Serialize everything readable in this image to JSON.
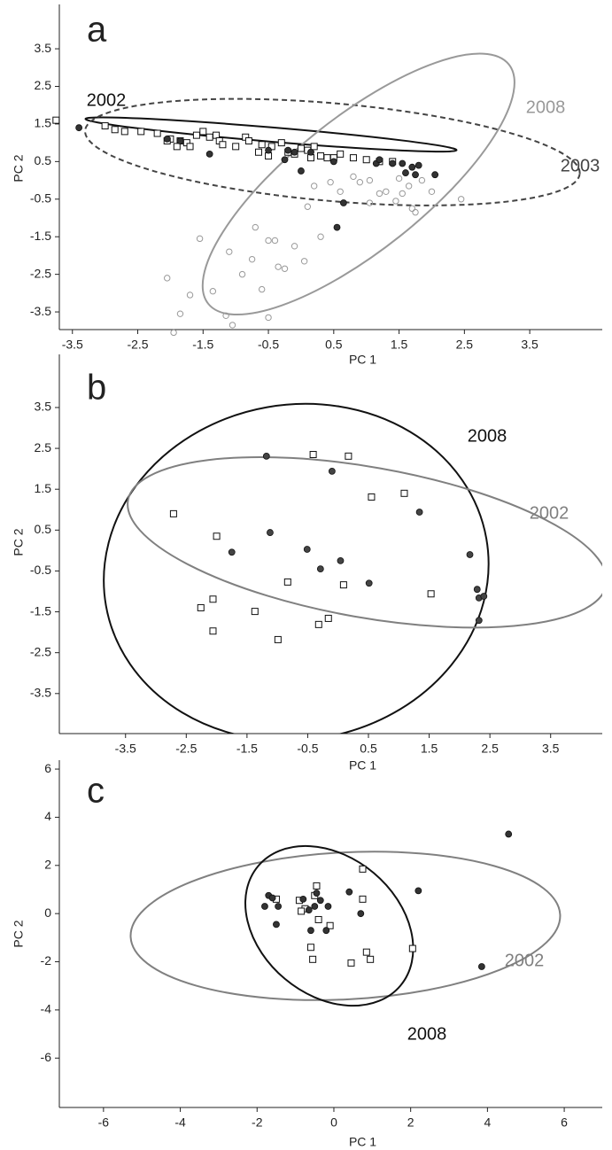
{
  "chart_data": [
    {
      "type": "scatter",
      "panel": "a",
      "x_label": "PC 1",
      "y_label": "PC 2",
      "xlim": [
        -3.7,
        4.61
      ],
      "ylim": [
        -3.97,
        4.68
      ],
      "xticks": [
        -3.5,
        -2.5,
        -1.5,
        -0.5,
        0.5,
        1.5,
        2.5,
        3.5
      ],
      "yticks": [
        -3.5,
        -2.5,
        -1.5,
        -0.5,
        0.5,
        1.5,
        2.5,
        3.5
      ],
      "series": [
        {
          "marker": "square",
          "color": "#111111",
          "x": [
            -3.75,
            -3.0,
            -2.85,
            -2.7,
            -2.45,
            -2.2,
            -2.0,
            -1.85,
            -1.75,
            -1.6,
            -1.5,
            -1.4,
            -1.3,
            -1.25,
            -1.0,
            -0.85,
            -0.8,
            -0.6,
            -0.5,
            -0.45,
            -0.3,
            -0.2,
            -0.1,
            0.0,
            0.1,
            0.2,
            0.3,
            0.4,
            0.5,
            0.6,
            0.8,
            -1.9,
            -1.7,
            -0.65,
            0.15,
            1.0,
            1.2,
            1.4,
            -2.05,
            -1.2
          ],
          "values": [
            1.6,
            1.45,
            1.35,
            1.3,
            1.3,
            1.25,
            1.1,
            1.05,
            1.0,
            1.2,
            1.3,
            1.15,
            1.2,
            1.05,
            0.9,
            1.15,
            1.05,
            0.95,
            0.65,
            0.9,
            1.0,
            0.75,
            0.7,
            0.85,
            0.8,
            0.9,
            0.65,
            0.6,
            0.6,
            0.7,
            0.6,
            0.9,
            0.9,
            0.75,
            0.6,
            0.55,
            0.5,
            0.5,
            1.05,
            0.95
          ]
        },
        {
          "marker": "filled-circle",
          "color": "#333333",
          "x": [
            -3.4,
            -2.05,
            -1.85,
            -1.4,
            -0.5,
            -0.2,
            -0.1,
            0.15,
            0.5,
            1.15,
            1.2,
            1.4,
            1.55,
            1.7,
            1.6,
            1.8,
            2.05,
            1.75,
            0.0,
            0.65,
            0.55,
            -0.25
          ],
          "values": [
            1.4,
            1.1,
            1.05,
            0.7,
            0.8,
            0.8,
            0.75,
            0.75,
            0.5,
            0.45,
            0.55,
            0.45,
            0.45,
            0.35,
            0.2,
            0.4,
            0.15,
            0.15,
            0.25,
            -0.6,
            -1.25,
            0.55
          ]
        },
        {
          "marker": "open-circle",
          "color": "#999999",
          "x": [
            -2.05,
            -1.95,
            -1.85,
            -1.7,
            -1.55,
            -1.35,
            -1.15,
            -1.1,
            -1.05,
            -0.9,
            -0.75,
            -0.7,
            -0.6,
            -0.5,
            -0.4,
            -0.35,
            -0.25,
            -0.1,
            0.05,
            0.1,
            0.3,
            0.45,
            0.6,
            0.8,
            0.9,
            1.05,
            1.2,
            1.3,
            1.45,
            1.55,
            1.65,
            1.7,
            1.75,
            1.85,
            2.0,
            2.45,
            -0.5,
            1.05,
            0.2,
            1.5
          ],
          "values": [
            -2.6,
            -4.05,
            -3.55,
            -3.05,
            -1.55,
            -2.95,
            -3.6,
            -1.9,
            -3.85,
            -2.5,
            -2.1,
            -1.25,
            -2.9,
            -1.6,
            -1.6,
            -2.3,
            -2.35,
            -1.75,
            -2.15,
            -0.7,
            -1.5,
            -0.05,
            -0.3,
            0.1,
            -0.05,
            0.0,
            -0.35,
            -0.3,
            -0.55,
            -0.35,
            -0.15,
            -0.75,
            -0.85,
            0.0,
            -0.3,
            -0.5,
            -3.65,
            -0.6,
            -0.15,
            0.05
          ]
        }
      ],
      "regions": [
        {
          "label": "2002",
          "color": "#111111",
          "dashed": false,
          "cx": -0.46,
          "cy": 1.22,
          "rx": 2.85,
          "ry": 0.19,
          "angle": 4.8
        },
        {
          "label": "2003",
          "color": "#444444",
          "dashed": true,
          "cx": 0.48,
          "cy": 0.75,
          "rx": 3.8,
          "ry": 1.3,
          "angle": 5
        },
        {
          "label": "2008",
          "color": "#999999",
          "dashed": false,
          "cx": 0.88,
          "cy": -0.1,
          "rx": 2.94,
          "ry": 1.77,
          "angle": -38.5
        }
      ]
    },
    {
      "type": "scatter",
      "panel": "b",
      "x_label": "PC 1",
      "y_label": "PC 2",
      "xlim": [
        -4.59,
        4.35
      ],
      "ylim": [
        -4.48,
        4.8
      ],
      "xticks": [
        -3.5,
        -2.5,
        -1.5,
        -0.5,
        0.5,
        1.5,
        2.5,
        3.5
      ],
      "yticks": [
        -3.5,
        -2.5,
        -1.5,
        -0.5,
        0.5,
        1.5,
        2.5,
        3.5
      ],
      "series": [
        {
          "marker": "square",
          "color": "#111111",
          "x": [
            -2.71,
            -2.0,
            -2.26,
            -2.06,
            -2.06,
            -1.37,
            -0.99,
            -0.83,
            -0.16,
            0.09,
            -0.41,
            0.17,
            0.55,
            1.09,
            1.53,
            -0.32
          ],
          "values": [
            0.9,
            0.35,
            -1.4,
            -1.19,
            -1.97,
            -1.49,
            -2.18,
            -0.77,
            -1.66,
            -0.84,
            2.35,
            2.31,
            1.31,
            1.4,
            -1.06,
            -1.81
          ]
        },
        {
          "marker": "filled-circle",
          "color": "#444444",
          "x": [
            -1.18,
            -0.1,
            1.34,
            -1.12,
            -1.75,
            -0.51,
            -0.29,
            0.04,
            2.17,
            0.51,
            2.29,
            2.32,
            2.32,
            2.4
          ],
          "values": [
            2.31,
            1.94,
            0.94,
            0.44,
            -0.04,
            0.03,
            -0.45,
            -0.25,
            -0.1,
            -0.8,
            -0.95,
            -1.71,
            -1.16,
            -1.12
          ]
        }
      ],
      "regions": [
        {
          "label": "2008",
          "color": "#111111",
          "dashed": false,
          "cx": -0.69,
          "cy": -0.53,
          "rx": 3.18,
          "ry": 4.1,
          "angle": -10
        },
        {
          "label": "2002",
          "color": "#808080",
          "dashed": false,
          "cx": 0.48,
          "cy": 0.2,
          "rx": 4.0,
          "ry": 1.84,
          "angle": 10
        }
      ]
    },
    {
      "type": "scatter",
      "panel": "c",
      "x_label": "PC 1",
      "y_label": "PC 2",
      "xlim": [
        -7.15,
        6.99
      ],
      "ylim": [
        -8.05,
        6.37
      ],
      "xticks": [
        -6,
        -4,
        -2,
        0,
        2,
        4,
        6
      ],
      "yticks": [
        -6,
        -4,
        -2,
        0,
        2,
        4,
        6
      ],
      "series": [
        {
          "marker": "square",
          "color": "#111111",
          "x": [
            -1.5,
            -0.9,
            -0.75,
            -0.85,
            -0.6,
            -0.55,
            -0.5,
            -0.45,
            -0.4,
            -0.1,
            0.75,
            0.75,
            0.45,
            0.85,
            0.95,
            2.05
          ],
          "values": [
            0.6,
            0.55,
            0.2,
            0.1,
            -1.4,
            -1.9,
            0.75,
            1.15,
            -0.25,
            -0.5,
            0.6,
            1.85,
            -2.05,
            -1.6,
            -1.9,
            -1.45
          ]
        },
        {
          "marker": "filled-circle",
          "color": "#333333",
          "x": [
            -1.8,
            -1.7,
            -1.6,
            -1.5,
            -1.45,
            -0.8,
            -0.6,
            -0.5,
            -0.45,
            -0.35,
            -0.2,
            -0.15,
            0.4,
            0.7,
            2.2,
            4.55,
            3.85,
            -0.65
          ],
          "values": [
            0.3,
            0.75,
            0.65,
            -0.45,
            0.3,
            0.6,
            -0.7,
            0.3,
            0.85,
            0.55,
            -0.7,
            0.3,
            0.9,
            0.0,
            0.95,
            3.3,
            -2.2,
            0.15
          ]
        }
      ],
      "regions": [
        {
          "label": "2002",
          "color": "#808080",
          "dashed": false,
          "cx": 0.3,
          "cy": -0.51,
          "rx": 5.6,
          "ry": 3.05,
          "angle": -3
        },
        {
          "label": "2008",
          "color": "#111111",
          "dashed": false,
          "cx": -0.12,
          "cy": -0.51,
          "rx": 2.42,
          "ry": 2.87,
          "angle": 40
        }
      ]
    }
  ]
}
